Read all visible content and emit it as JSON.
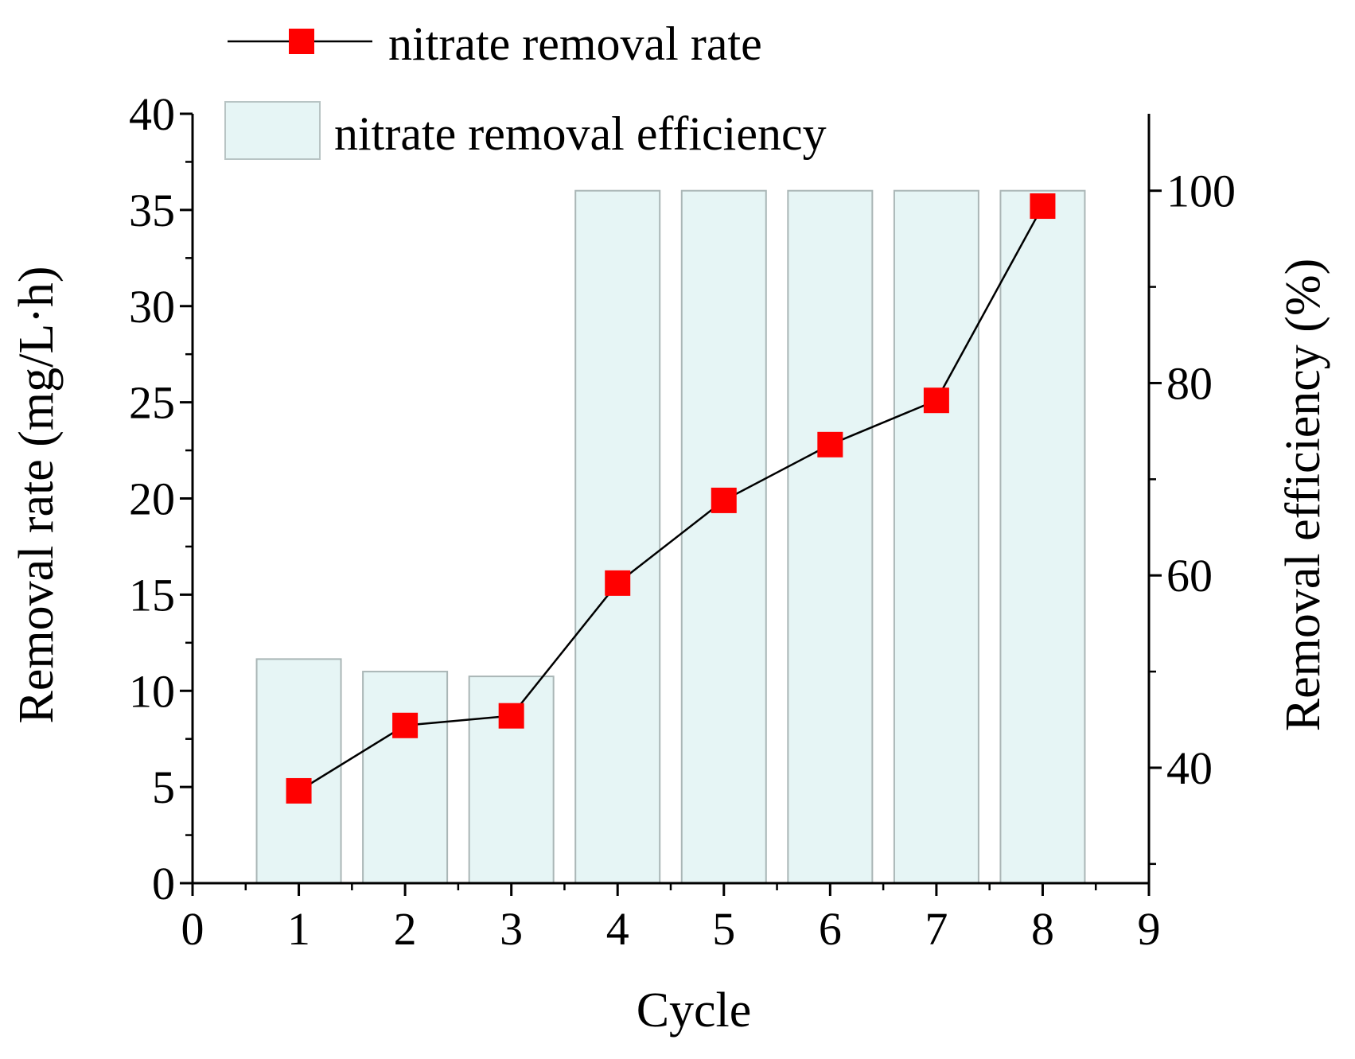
{
  "chart_data": {
    "type": "bar+line",
    "xlabel": "Cycle",
    "ylabel_left": "Removal rate (mg/L·h)",
    "ylabel_right": "Removal efficiency (%)",
    "xlim": [
      0,
      9
    ],
    "ylim_left": [
      0,
      40
    ],
    "ylim_right": [
      28,
      108
    ],
    "x_ticks": [
      "0",
      "1",
      "2",
      "3",
      "4",
      "5",
      "6",
      "7",
      "8",
      "9"
    ],
    "y_left_ticks": [
      "0",
      "5",
      "10",
      "15",
      "20",
      "25",
      "30",
      "35",
      "40"
    ],
    "y_right_ticks": [
      "40",
      "60",
      "80",
      "100"
    ],
    "categories": [
      1,
      2,
      3,
      4,
      5,
      6,
      7,
      8
    ],
    "series": [
      {
        "name": "nitrate removal rate",
        "type": "line",
        "axis": "left",
        "color": "#ff0000",
        "values": [
          4.8,
          8.2,
          8.7,
          15.6,
          19.9,
          22.8,
          25.1,
          35.2
        ]
      },
      {
        "name": "nitrate removal efficiency",
        "type": "bar",
        "axis": "right",
        "color": "#e6f5f5",
        "values": [
          51.3,
          50.0,
          49.5,
          100,
          100,
          100,
          100,
          100
        ]
      }
    ],
    "legend": [
      {
        "label": "nitrate removal rate"
      },
      {
        "label": "nitrate removal efficiency"
      }
    ]
  }
}
